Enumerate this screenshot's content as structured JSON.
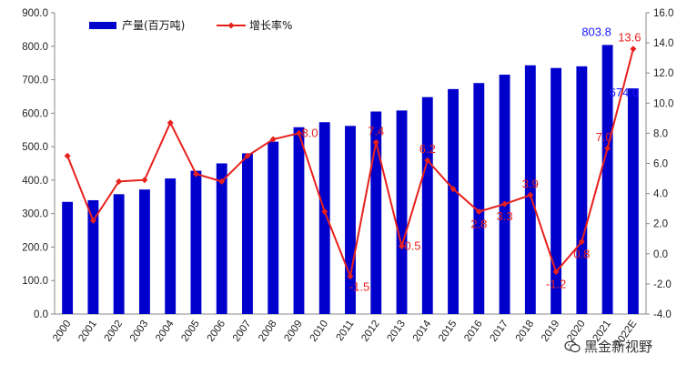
{
  "chart_data": {
    "type": "bar",
    "categories": [
      "2000",
      "2001",
      "2002",
      "2003",
      "2004",
      "2005",
      "2006",
      "2007",
      "2008",
      "2009",
      "2010",
      "2011",
      "2012",
      "2013",
      "2014",
      "2015",
      "2016",
      "2017",
      "2018",
      "2019",
      "2020",
      "2021",
      "2022E"
    ],
    "series": [
      {
        "name": "产量(百万吨)",
        "type": "bar",
        "axis": "left",
        "color": "#0000cc",
        "values": [
          335,
          340,
          358,
          372,
          405,
          428,
          450,
          480,
          515,
          558,
          573,
          562,
          605,
          608,
          648,
          672,
          690,
          715,
          743,
          735,
          740,
          803.8,
          674.0
        ]
      },
      {
        "name": "增长率%",
        "type": "line",
        "axis": "right",
        "color": "#e8201c",
        "values": [
          6.5,
          2.2,
          4.8,
          4.9,
          8.7,
          5.3,
          4.8,
          6.5,
          7.6,
          8.0,
          2.8,
          -1.5,
          7.4,
          0.5,
          6.2,
          4.3,
          2.8,
          3.3,
          3.9,
          -1.2,
          0.8,
          7.0,
          13.6
        ]
      }
    ],
    "left_axis": {
      "min": 0,
      "max": 900,
      "step": 100,
      "tick_labels": [
        "0.0",
        "100.0",
        "200.0",
        "300.0",
        "400.0",
        "500.0",
        "600.0",
        "700.0",
        "800.0",
        "900.0"
      ]
    },
    "right_axis": {
      "min": -4,
      "max": 16,
      "step": 2,
      "tick_labels": [
        "-4.0",
        "-2.0",
        "0.0",
        "2.0",
        "4.0",
        "6.0",
        "8.0",
        "10.0",
        "12.0",
        "14.0",
        "16.0"
      ]
    },
    "bar_labels": [
      {
        "index": 21,
        "text": "803.8"
      },
      {
        "index": 22,
        "text": "674.0"
      }
    ],
    "line_labels": [
      {
        "index": 9,
        "text": "8.0",
        "pos": "right"
      },
      {
        "index": 11,
        "text": "-1.5",
        "pos": "below-right"
      },
      {
        "index": 12,
        "text": "7.4",
        "pos": "above"
      },
      {
        "index": 13,
        "text": "0.5",
        "pos": "right"
      },
      {
        "index": 14,
        "text": "6.2",
        "pos": "above"
      },
      {
        "index": 16,
        "text": "2.8",
        "pos": "below"
      },
      {
        "index": 17,
        "text": "3.3",
        "pos": "below"
      },
      {
        "index": 18,
        "text": "3.9",
        "pos": "above"
      },
      {
        "index": 19,
        "text": "-1.2",
        "pos": "below"
      },
      {
        "index": 20,
        "text": "0.8",
        "pos": "below"
      },
      {
        "index": 21,
        "text": "7.0",
        "pos": "above-left"
      },
      {
        "index": 22,
        "text": "13.6",
        "pos": "above-left"
      }
    ],
    "legend": {
      "placement": "top-left",
      "items": [
        "产量(百万吨)",
        "增长率%"
      ]
    },
    "grid": false
  },
  "watermark": {
    "text": "黑金新视野",
    "icon": "wechat-icon"
  }
}
